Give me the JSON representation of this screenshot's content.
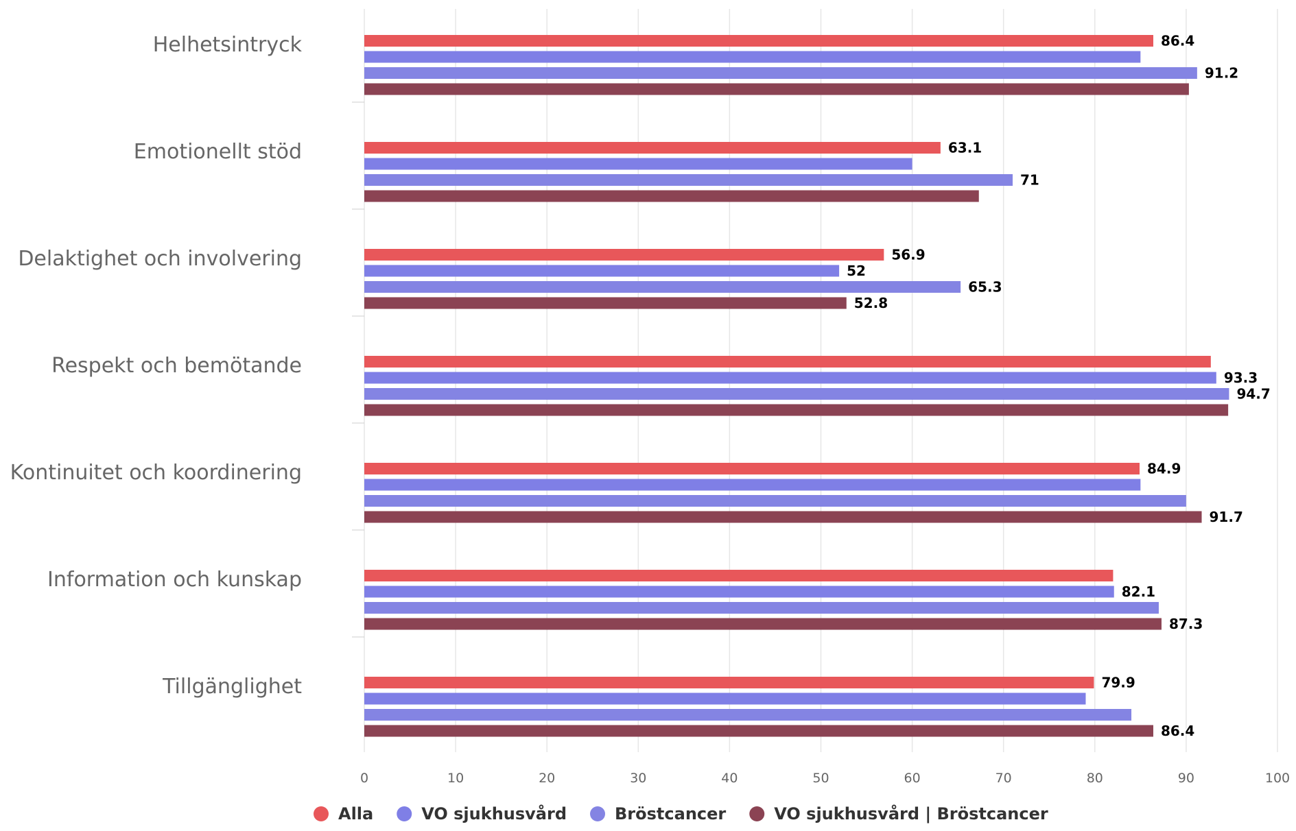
{
  "chart_data": {
    "type": "bar",
    "orientation": "horizontal",
    "categories": [
      "Helhetsintryck",
      "Emotionellt stöd",
      "Delaktighet och involvering",
      "Respekt och bemötande",
      "Kontinuitet och koordinering",
      "Information och kunskap",
      "Tillgänglighet"
    ],
    "series": [
      {
        "name": "Alla",
        "color": "#e8575a",
        "values": [
          86.4,
          63.1,
          56.9,
          92.7,
          84.9,
          82.0,
          79.9
        ],
        "labels": [
          "86.4",
          "63.1",
          "56.9",
          "",
          "84.9",
          "",
          "79.9"
        ]
      },
      {
        "name": "VO sjukhusvård",
        "color": "#7f7fe6",
        "values": [
          85.0,
          60.0,
          52.0,
          93.3,
          85.0,
          82.1,
          79.0
        ],
        "labels": [
          "",
          "",
          "52",
          "93.3",
          "",
          "82.1",
          ""
        ]
      },
      {
        "name": "Bröstcancer",
        "color": "#8484e3",
        "values": [
          91.2,
          71.0,
          65.3,
          94.7,
          90.0,
          87.0,
          84.0
        ],
        "labels": [
          "91.2",
          "71",
          "65.3",
          "94.7",
          "",
          "",
          ""
        ]
      },
      {
        "name": "VO sjukhusvård | Bröstcancer",
        "color": "#8b4353",
        "values": [
          90.3,
          67.3,
          52.8,
          94.6,
          91.7,
          87.3,
          86.4
        ],
        "labels": [
          "",
          "",
          "52.8",
          "",
          "91.7",
          "87.3",
          "86.4"
        ]
      }
    ],
    "xlim": [
      0,
      100
    ],
    "xticks": [
      "0",
      "10",
      "20",
      "30",
      "40",
      "50",
      "60",
      "70",
      "80",
      "90",
      "100"
    ],
    "grid": "vertical",
    "legend_position": "bottom"
  }
}
